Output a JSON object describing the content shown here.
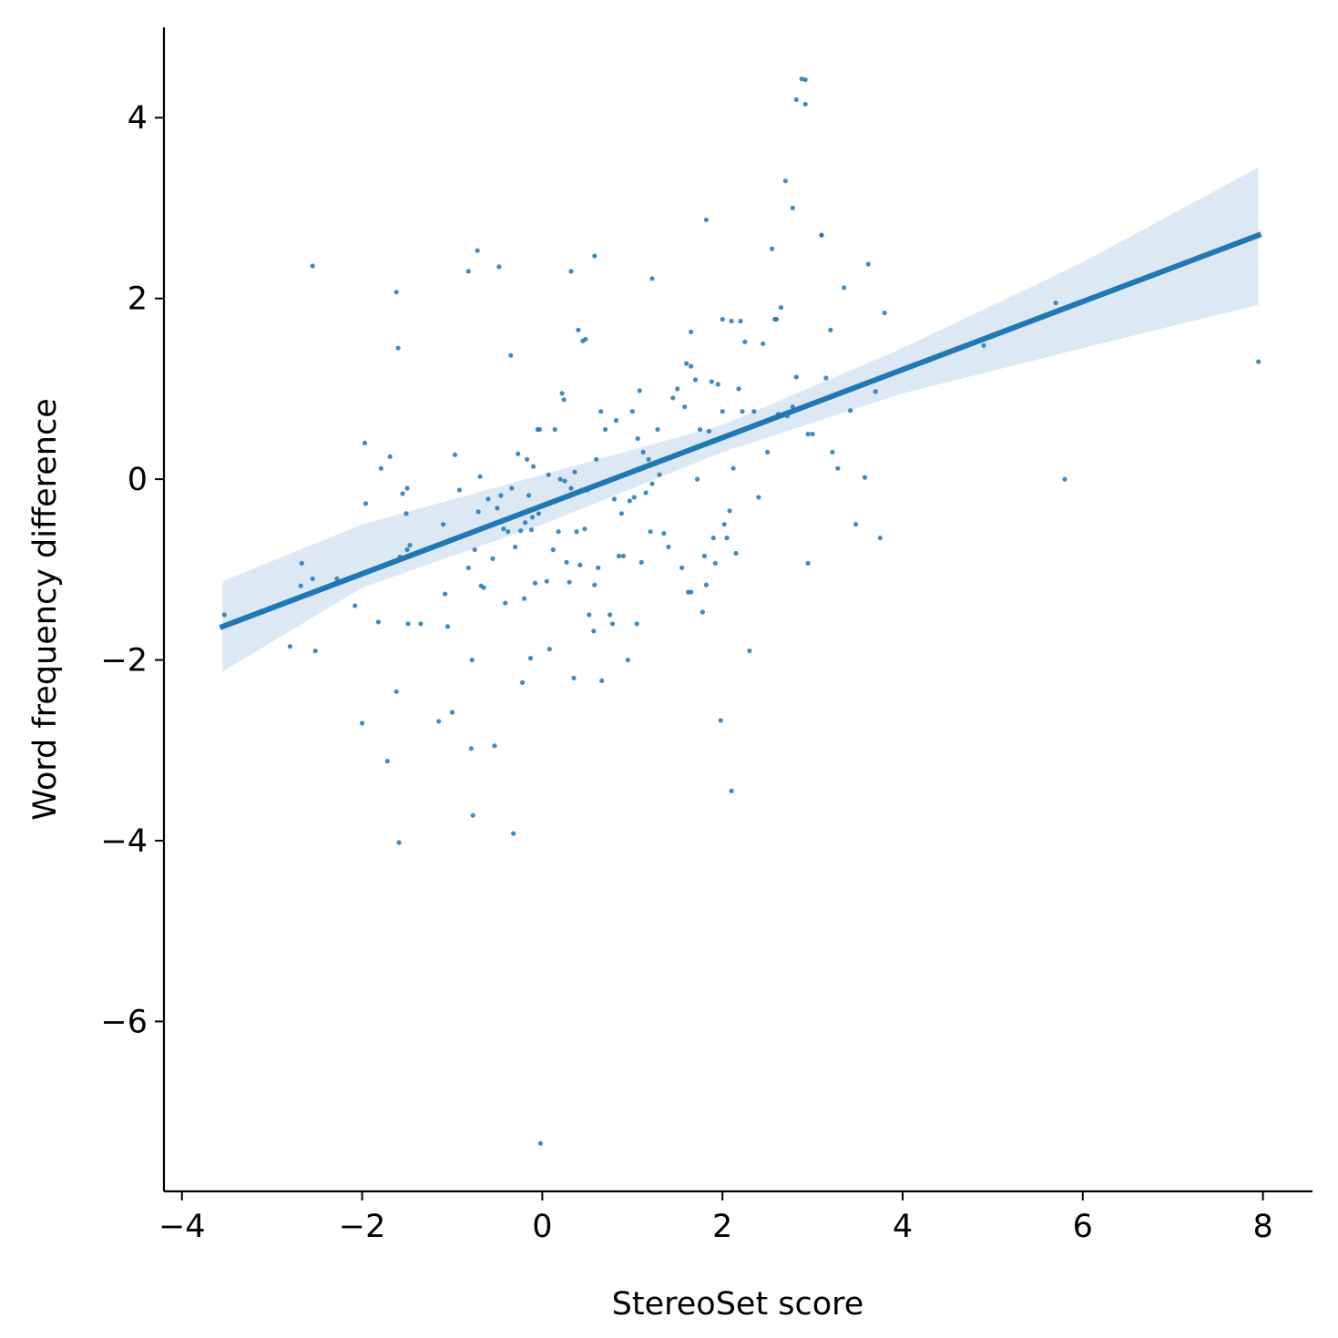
{
  "chart_data": {
    "type": "scatter",
    "title": "",
    "xlabel": "StereoSet score",
    "ylabel": "Word frequency difference",
    "xlim": [
      -4.2,
      8.55
    ],
    "ylim": [
      -7.88,
      5.0
    ],
    "xticks": [
      -4,
      -2,
      0,
      2,
      4,
      6,
      8
    ],
    "yticks": [
      -6,
      -4,
      -2,
      0,
      2,
      4
    ],
    "xtick_labels": [
      "−4",
      "−2",
      "0",
      "2",
      "4",
      "6",
      "8"
    ],
    "ytick_labels": [
      "−6",
      "−4",
      "−2",
      "0",
      "2",
      "4"
    ],
    "grid": false,
    "legend": "none",
    "colors": {
      "points": "#1f77b4",
      "line": "#1f77b4",
      "band": "#dce8f4"
    },
    "regression": {
      "x": [
        -3.55,
        7.95
      ],
      "y": [
        -1.63,
        2.7
      ],
      "ci_x": [
        -3.55,
        -2,
        0,
        2,
        4,
        6,
        7.95
      ],
      "ci_upper": [
        -1.13,
        -0.5,
        0.05,
        0.6,
        1.45,
        2.4,
        3.45
      ],
      "ci_lower": [
        -2.13,
        -1.2,
        -0.5,
        0.3,
        0.95,
        1.45,
        1.93
      ]
    },
    "points": {
      "x": [
        -3.53,
        -2.8,
        -2.68,
        -2.67,
        -2.55,
        -2.52,
        -2.28,
        -2.08,
        -2.0,
        -1.97,
        -1.96,
        -1.82,
        -1.79,
        -1.72,
        -1.69,
        -1.62,
        -1.59,
        -1.58,
        -1.55,
        -1.51,
        -1.5,
        -1.5,
        -1.49,
        -1.47,
        -1.35,
        -1.15,
        -1.1,
        -1.08,
        -1.05,
        -1.0,
        -0.97,
        -0.92,
        -0.82,
        -0.79,
        -0.77,
        -0.75,
        -0.71,
        -0.69,
        -0.68,
        -0.65,
        -0.6,
        -0.55,
        -0.53,
        -0.5,
        -0.46,
        -0.43,
        -0.41,
        -0.38,
        -0.34,
        -0.32,
        -0.3,
        -0.27,
        -0.24,
        -0.22,
        -0.2,
        -0.19,
        -0.17,
        -0.15,
        -0.13,
        -0.12,
        -0.11,
        -0.1,
        -0.08,
        -0.05,
        -0.04,
        -0.02,
        0.05,
        0.07,
        0.08,
        0.12,
        0.14,
        0.18,
        0.2,
        0.22,
        0.24,
        0.25,
        0.27,
        0.3,
        0.32,
        0.35,
        0.36,
        0.38,
        0.4,
        0.42,
        0.45,
        0.47,
        0.5,
        0.52,
        0.57,
        0.58,
        0.6,
        0.62,
        0.65,
        0.66,
        0.7,
        0.75,
        0.78,
        0.8,
        0.82,
        0.85,
        0.88,
        0.9,
        0.95,
        0.97,
        1.0,
        1.02,
        1.05,
        1.06,
        1.08,
        1.1,
        1.12,
        1.15,
        1.18,
        1.2,
        1.22,
        1.25,
        1.28,
        1.3,
        1.35,
        1.4,
        1.45,
        1.5,
        1.55,
        1.58,
        1.6,
        1.62,
        1.65,
        1.7,
        1.72,
        1.75,
        1.78,
        1.8,
        1.82,
        1.85,
        1.88,
        1.9,
        1.92,
        1.95,
        1.98,
        2.0,
        2.02,
        2.05,
        2.08,
        2.1,
        2.12,
        2.15,
        2.18,
        2.22,
        2.25,
        2.3,
        2.35,
        2.4,
        2.45,
        2.5,
        2.55,
        2.6,
        2.62,
        2.65,
        2.7,
        2.72,
        2.78,
        2.82,
        2.88,
        2.92,
        2.95,
        3.0,
        3.1,
        3.15,
        3.2,
        3.22,
        3.28,
        3.35,
        3.42,
        3.48,
        3.58,
        3.62,
        3.7,
        3.75,
        3.8,
        4.9,
        5.7,
        5.8,
        7.95,
        -0.03,
        -0.35,
        -0.78,
        -1.6,
        1.65,
        2.1,
        2.95,
        2.82,
        2.92,
        -0.48,
        0.45,
        0.58,
        1.22,
        -0.82,
        -2.55,
        -0.72,
        0.32,
        0.48,
        -1.62,
        1.82,
        2.58,
        3.1,
        1.65,
        2.0,
        2.2,
        2.78
      ],
      "y": [
        -1.5,
        -1.85,
        -1.18,
        -0.93,
        -1.1,
        -1.9,
        -1.1,
        -1.4,
        -2.7,
        0.4,
        -0.27,
        -1.58,
        0.12,
        -3.12,
        0.25,
        -2.35,
        -4.02,
        -0.86,
        -0.16,
        -0.38,
        -0.1,
        -0.78,
        -1.6,
        -0.73,
        -1.6,
        -2.68,
        -0.5,
        -1.27,
        -1.63,
        -2.58,
        0.27,
        -0.12,
        -0.98,
        -2.98,
        -3.72,
        -0.78,
        -0.36,
        0.03,
        -1.18,
        -1.2,
        -0.22,
        -0.88,
        -2.95,
        -0.32,
        -0.18,
        -0.55,
        -1.37,
        -0.58,
        -0.1,
        -3.92,
        -0.75,
        0.28,
        -0.57,
        -2.25,
        -1.32,
        -0.48,
        0.22,
        -0.18,
        -1.98,
        -0.56,
        -0.42,
        0.14,
        -1.15,
        0.55,
        -0.38,
        -7.35,
        -1.13,
        0.05,
        -1.88,
        -0.78,
        0.55,
        -0.58,
        0.0,
        0.95,
        0.88,
        -0.02,
        -0.92,
        -1.14,
        -0.1,
        -2.2,
        0.08,
        -0.58,
        1.65,
        -0.95,
        -0.12,
        -0.55,
        -0.12,
        -1.5,
        -1.68,
        -1.17,
        0.22,
        -0.98,
        0.75,
        -2.23,
        0.55,
        -1.5,
        -1.6,
        -0.22,
        0.65,
        -0.85,
        -0.38,
        -0.85,
        -2.0,
        -0.24,
        0.75,
        -0.2,
        -1.6,
        0.45,
        0.98,
        -0.92,
        0.3,
        -0.15,
        0.22,
        -0.58,
        -0.05,
        0.17,
        0.55,
        0.05,
        -0.6,
        -0.75,
        0.9,
        1.0,
        -0.98,
        0.8,
        1.28,
        -1.25,
        -1.25,
        1.1,
        0.0,
        0.55,
        -1.47,
        -0.85,
        -1.17,
        0.53,
        1.08,
        -0.65,
        -0.93,
        1.05,
        -2.67,
        0.75,
        -0.5,
        -0.65,
        -0.35,
        -3.45,
        0.12,
        -0.82,
        1.0,
        0.75,
        1.52,
        -1.9,
        0.75,
        -0.2,
        1.5,
        0.3,
        2.55,
        1.77,
        0.72,
        1.9,
        3.3,
        0.7,
        3.0,
        1.13,
        4.43,
        4.15,
        0.5,
        0.5,
        2.7,
        1.12,
        1.65,
        0.3,
        0.12,
        2.12,
        0.76,
        -0.5,
        0.02,
        2.38,
        0.97,
        -0.65,
        1.84,
        1.48,
        1.95,
        0.0,
        1.3,
        0.55,
        1.37,
        -2.0,
        1.45,
        1.25,
        1.75,
        -0.93,
        4.2,
        4.42,
        2.35,
        1.53,
        2.47,
        2.22,
        2.3,
        2.36,
        2.53,
        2.3,
        1.55,
        2.07,
        2.87,
        1.77,
        2.7,
        1.63,
        1.77,
        1.75,
        0.8
      ]
    }
  }
}
